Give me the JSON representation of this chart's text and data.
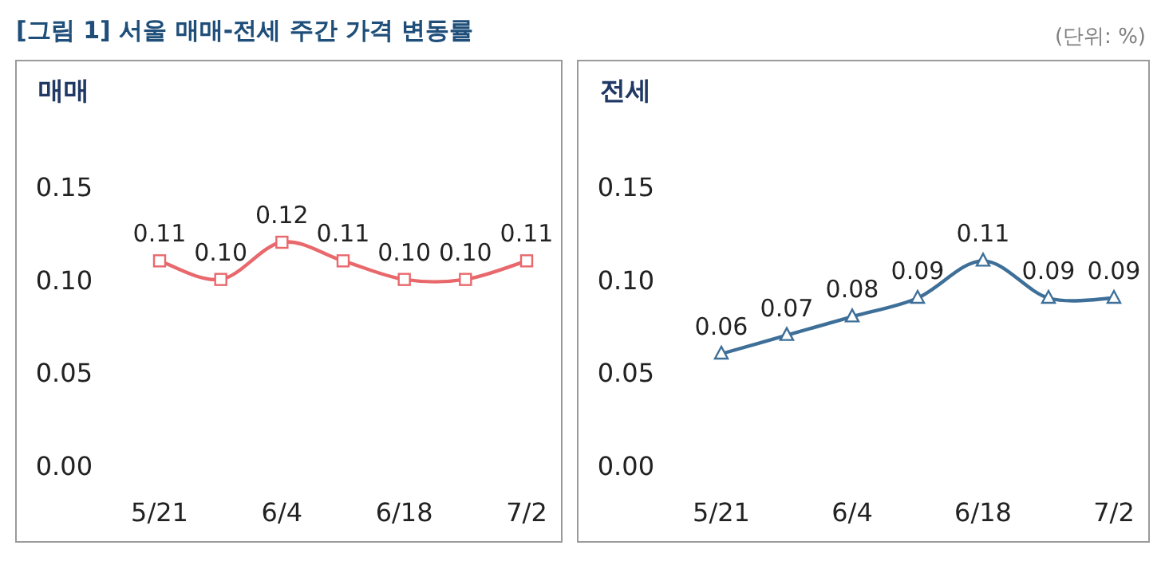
{
  "chart_data": [
    {
      "type": "line",
      "title": "매매",
      "annotations": [
        "[그림 1] 서울 매매-전세 주간 가격 변동률",
        "(단위: %)"
      ],
      "categories": [
        "5/21",
        null,
        "6/4",
        null,
        "6/18",
        null,
        "7/2"
      ],
      "series": [
        {
          "color": "#e8686c",
          "values": [
            0.11,
            0.1,
            0.12,
            0.11,
            0.1,
            0.1,
            0.11
          ],
          "value_labels": [
            "0.11",
            "0.10",
            "0.12",
            "0.11",
            "0.10",
            "0.10",
            "0.11"
          ]
        }
      ],
      "ylim": [
        0,
        0.15
      ],
      "yticks": [
        {
          "value": 0,
          "label": "0.00"
        },
        {
          "value": 0.05,
          "label": "0.05"
        },
        {
          "value": 0.1,
          "label": "0.10"
        },
        {
          "value": 0.15,
          "label": "0.15"
        }
      ],
      "marker": "square",
      "line_style": "solid",
      "grid": false
    },
    {
      "type": "line",
      "title": "전세",
      "categories": [
        "5/21",
        null,
        "6/4",
        null,
        "6/18",
        null,
        "7/2"
      ],
      "series": [
        {
          "color": "#3d6f98",
          "values": [
            0.06,
            0.07,
            0.08,
            0.09,
            0.11,
            0.09,
            0.09
          ],
          "value_labels": [
            "0.06",
            "0.07",
            "0.08",
            "0.09",
            "0.11",
            "0.09",
            "0.09"
          ]
        }
      ],
      "ylim": [
        0,
        0.15
      ],
      "yticks": [
        {
          "value": 0,
          "label": "0.00"
        },
        {
          "value": 0.05,
          "label": "0.05"
        },
        {
          "value": 0.1,
          "label": "0.10"
        },
        {
          "value": 0.15,
          "label": "0.15"
        }
      ],
      "marker": "triangle",
      "line_style": "solid",
      "grid": false
    }
  ]
}
